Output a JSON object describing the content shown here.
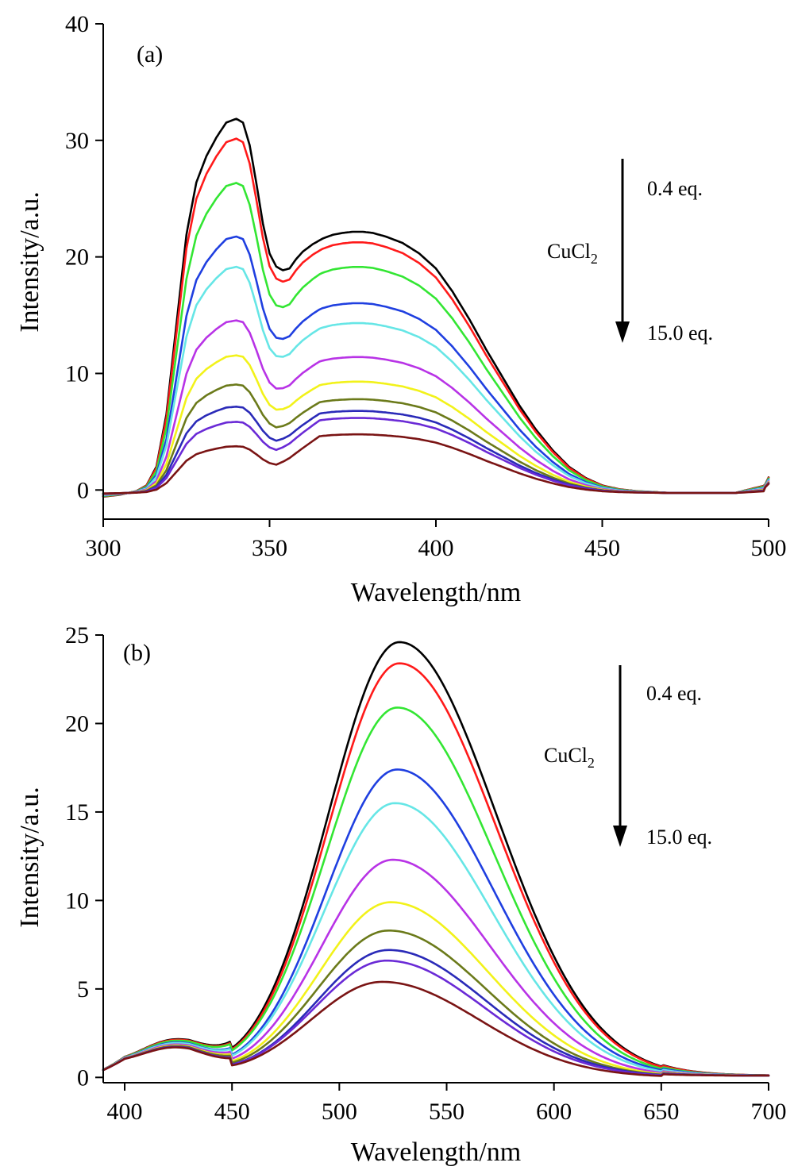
{
  "figure": {
    "panels": [
      "(a)",
      "(b)"
    ]
  },
  "colors": {
    "series": [
      "#000000",
      "#ff1a1a",
      "#33e633",
      "#1f3fe0",
      "#66e6e6",
      "#b833e6",
      "#f2f21a",
      "#6b7a1a",
      "#2a2ab8",
      "#6a2ad6",
      "#7a1414"
    ]
  },
  "chart_data": [
    {
      "type": "line",
      "panel_label": "(a)",
      "xlabel": "Wavelength/nm",
      "ylabel": "Intensity/a.u.",
      "xlim": [
        300,
        500
      ],
      "ylim": [
        -2.5,
        40
      ],
      "xticks": [
        300,
        350,
        400,
        450,
        500
      ],
      "yticks": [
        0,
        10,
        20,
        30,
        40
      ],
      "annotation": {
        "reagent": "CuCl",
        "subscript": "2",
        "start": "0.4 eq.",
        "end": "15.0 eq."
      },
      "shape": {
        "x": [
          300,
          305,
          310,
          313,
          316,
          319,
          322,
          325,
          328,
          331,
          334,
          337,
          340,
          342,
          344,
          346,
          348,
          350,
          352,
          354,
          356,
          358,
          360,
          363,
          366,
          369,
          372,
          375,
          378,
          381,
          385,
          390,
          395,
          400,
          405,
          410,
          415,
          420,
          425,
          430,
          435,
          440,
          445,
          450,
          455,
          460,
          470,
          480,
          490,
          499,
          500
        ],
        "values": [
          -0.01,
          -0.005,
          0.005,
          0.02,
          0.07,
          0.21,
          0.45,
          0.69,
          0.83,
          0.9,
          0.95,
          0.99,
          1.0,
          0.99,
          0.93,
          0.83,
          0.72,
          0.64,
          0.605,
          0.595,
          0.6,
          0.625,
          0.645,
          0.665,
          0.68,
          0.69,
          0.695,
          0.698,
          0.698,
          0.695,
          0.685,
          0.668,
          0.64,
          0.6,
          0.538,
          0.465,
          0.385,
          0.31,
          0.235,
          0.17,
          0.115,
          0.07,
          0.04,
          0.02,
          0.01,
          0.005,
          0.0,
          0.0,
          0.0,
          0.02,
          0.045
        ]
      },
      "series": [
        {
          "peak": 32.1,
          "shoulder_drop": 0.0
        },
        {
          "peak": 30.4,
          "shoulder_drop": 0.0
        },
        {
          "peak": 26.6,
          "shoulder_drop": 0.0
        },
        {
          "peak": 22.0,
          "shoulder_drop": 0.0
        },
        {
          "peak": 19.4,
          "shoulder_drop": 0.0
        },
        {
          "peak": 14.8,
          "shoulder_drop": 0.0
        },
        {
          "peak": 11.8,
          "shoulder_drop": 0.0
        },
        {
          "peak": 9.3,
          "shoulder_drop": 0.0
        },
        {
          "peak": 7.4,
          "shoulder_drop": 0.0
        },
        {
          "peak": 6.1,
          "shoulder_drop": 0.0
        },
        {
          "peak": 4.0,
          "shoulder_drop": 0.0
        }
      ],
      "second_peak": [
        22.3,
        21.4,
        19.3,
        16.2,
        14.5,
        11.6,
        9.5,
        8.0,
        7.0,
        6.4,
        5.0
      ]
    },
    {
      "type": "line",
      "panel_label": "(b)",
      "xlabel": "Wavelength/nm",
      "ylabel": "Intensity/a.u.",
      "xlim": [
        390,
        700
      ],
      "ylim": [
        -0.3,
        25
      ],
      "xticks": [
        400,
        450,
        500,
        550,
        600,
        650,
        700
      ],
      "yticks": [
        0,
        5,
        10,
        15,
        20,
        25
      ],
      "annotation": {
        "reagent": "CuCl",
        "subscript": "2",
        "start": "0.4 eq.",
        "end": "15.0 eq."
      },
      "peaks": [
        24.6,
        23.4,
        20.9,
        17.4,
        15.5,
        12.3,
        9.9,
        8.3,
        7.2,
        6.6,
        5.4
      ],
      "peak_x": [
        528,
        528,
        527,
        527,
        526,
        525,
        524,
        523,
        523,
        522,
        520
      ]
    }
  ]
}
